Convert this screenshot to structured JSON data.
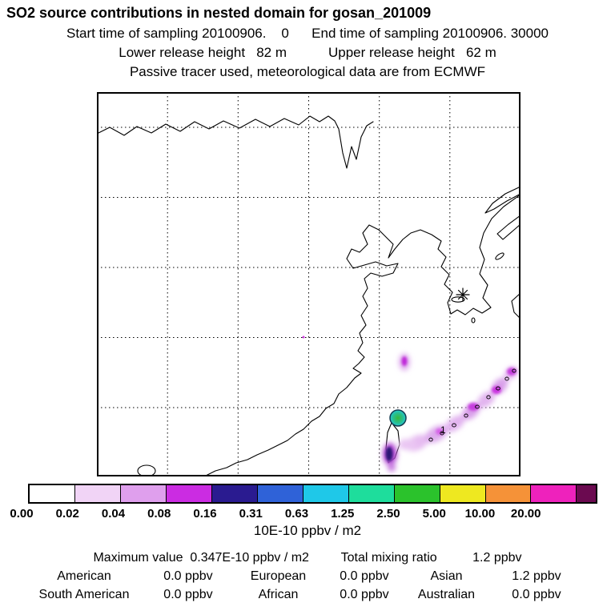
{
  "header": {
    "title": "SO2 source contributions in nested domain for gosan_201009",
    "line2": "Start time of sampling 20100906.    0      End time of sampling 20100906. 30000",
    "line3": "Lower release height   82 m           Upper release height   62 m",
    "line4": "Passive tracer used, meteorological data are from ECMWF"
  },
  "map": {
    "contour_label": "1",
    "receptor_marker": "asterisk",
    "source_marker": "green-cyan-circle"
  },
  "colorbar": {
    "tick_labels": [
      "0.00",
      "0.02",
      "0.04",
      "0.08",
      "0.16",
      "0.31",
      "0.63",
      "1.25",
      "2.50",
      "5.00",
      "10.00",
      "20.00"
    ],
    "colors": [
      "#ffffff",
      "#f1d4f6",
      "#df9fed",
      "#cb2ce2",
      "#2a1b90",
      "#2f62d8",
      "#1fc8e8",
      "#1edd9c",
      "#2bc22c",
      "#eee820",
      "#f59238",
      "#ee22bc",
      "#6b0a50"
    ],
    "units": "10E-10 ppbv / m2"
  },
  "stats": {
    "summary": "Maximum value  0.347E-10 ppbv / m2         Total mixing ratio          1.2 ppbv",
    "rows": [
      [
        "American",
        "0.0 ppbv",
        "European",
        "0.0 ppbv",
        "Asian",
        "1.2 ppbv"
      ],
      [
        "South American",
        "0.0 ppbv",
        "African",
        "0.0 ppbv",
        "Australian",
        "0.0 ppbv"
      ]
    ]
  },
  "chart_data": {
    "type": "heatmap",
    "title": "SO2 source contributions in nested domain for gosan_201009",
    "subtitle_lines": [
      "Start time of sampling 20100906. 0",
      "End time of sampling 20100906. 30000",
      "Lower release height 82 m",
      "Upper release height 62 m",
      "Passive tracer used, meteorological data are from ECMWF"
    ],
    "colorbar_levels": [
      0.0,
      0.02,
      0.04,
      0.08,
      0.16,
      0.31,
      0.63,
      1.25,
      2.5,
      5.0,
      10.0,
      20.0
    ],
    "colorbar_units": "10E-10 ppbv / m2",
    "legend_position": "bottom",
    "maximum_value": "0.347E-10 ppbv / m2",
    "total_mixing_ratio": "1.2 ppbv",
    "source_contributions": {
      "American": "0.0 ppbv",
      "European": "0.0 ppbv",
      "Asian": "1.2 ppbv",
      "South American": "0.0 ppbv",
      "African": "0.0 ppbv",
      "Australian": "0.0 ppbv"
    },
    "visible_features": "violet plume over Taiwan and along Ryukyu island arc, circular source marker north of Taiwan, asterisk receptor marker near Jeju"
  }
}
